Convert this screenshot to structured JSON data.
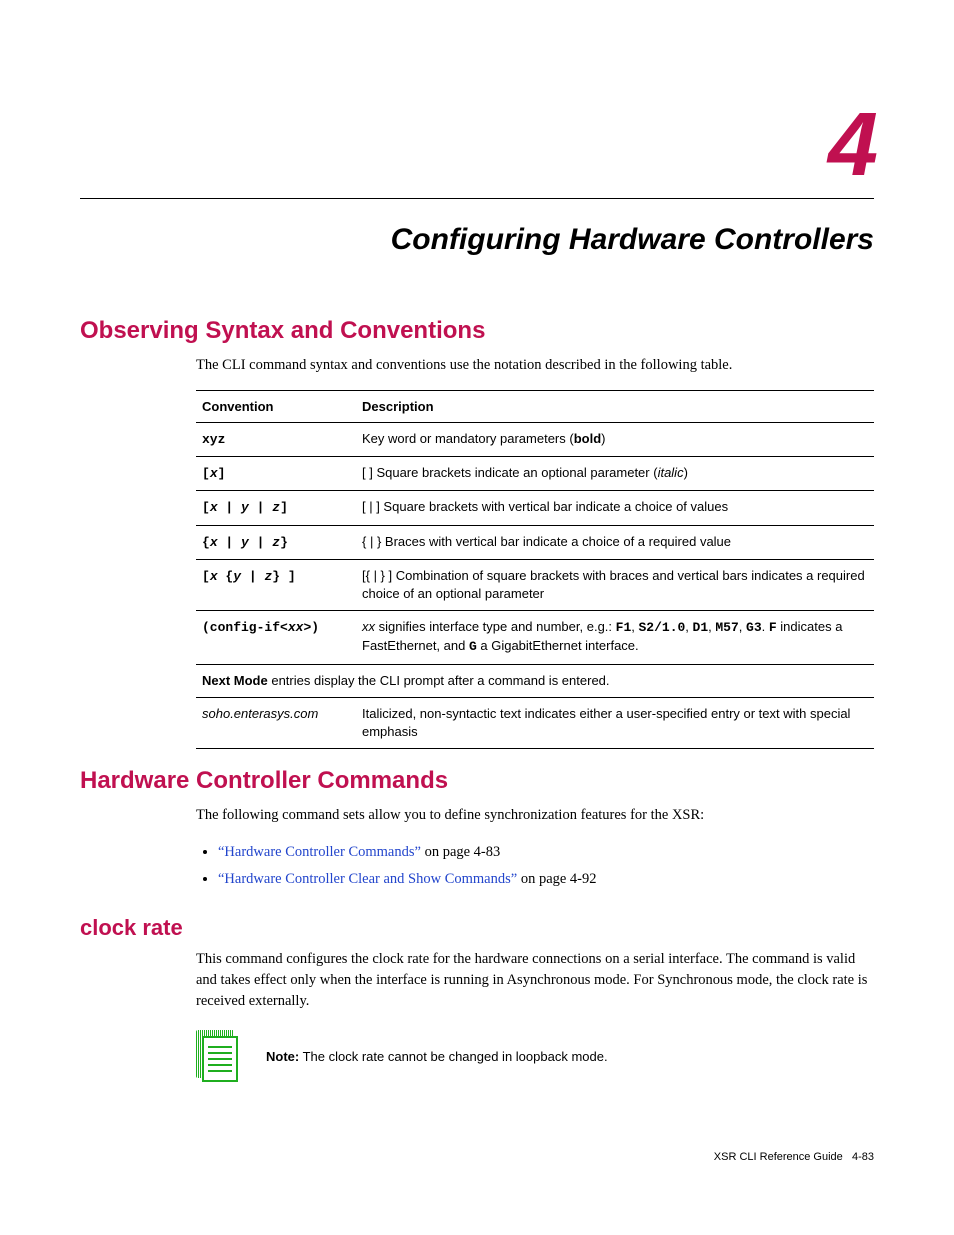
{
  "chapter": {
    "number": "4",
    "title": "Configuring Hardware Controllers"
  },
  "section_syntax": {
    "heading": "Observing Syntax and Conventions",
    "intro": "The CLI command syntax and conventions use the notation described in the following table.",
    "table": {
      "headers": [
        "Convention",
        "Description"
      ],
      "rows": [
        {
          "conv_html": "<span class='mono'>xyz</span>",
          "desc_html": "Key word or mandatory parameters (<span class='bold'>bold</span>)"
        },
        {
          "conv_html": "<span class='mono'>[</span><span class='mono-i'>x</span><span class='mono'>]</span>",
          "desc_html": "[ ] Square brackets indicate an optional parameter (<span class='italic'>italic</span>)"
        },
        {
          "conv_html": "<span class='mono'>[</span><span class='mono-i'>x</span><span class='mono'> | </span><span class='mono-i'>y</span><span class='mono'> | </span><span class='mono-i'>z</span><span class='mono'>]</span>",
          "desc_html": "[ | ] Square brackets with vertical bar indicate a choice of values"
        },
        {
          "conv_html": "<span class='mono'>{</span><span class='mono-i'>x</span><span class='mono'> | </span><span class='mono-i'>y</span><span class='mono'> | </span><span class='mono-i'>z</span><span class='mono'>}</span>",
          "desc_html": "{ | } Braces with vertical bar indicate a choice of a required value"
        },
        {
          "conv_html": "<span class='mono'>[</span><span class='mono-i'>x</span><span class='mono'> {</span><span class='mono-i'>y</span><span class='mono'> | </span><span class='mono-i'>z</span><span class='mono'>} ]</span>",
          "desc_html": "[{ | } ] Combination of square brackets with braces and vertical bars indicates a required choice of an optional parameter"
        },
        {
          "conv_html": "<span class='mono'>(config-if&lt;</span><span class='mono-i'>xx</span><span class='mono'>&gt;)</span>",
          "desc_html": "<span class='italic'>xx</span> signifies interface type and number, e.g.: <span class='mono'>F1</span>, <span class='mono'>S2/1.0</span>, <span class='mono'>D1</span>, <span class='mono'>M57</span>, <span class='mono'>G3</span>. <span class='mono'>F</span> indicates a FastEthernet, and <span class='mono'>G</span> a GigabitEthernet interface."
        },
        {
          "full_html": "<span class='bold'>Next Mode</span> entries display the CLI prompt after a command is entered."
        },
        {
          "conv_html": "<span class='italic'>soho.enterasys.com</span>",
          "desc_html": "Italicized, non-syntactic text indicates either a user-specified entry or text with special emphasis"
        }
      ]
    }
  },
  "section_commands": {
    "heading": "Hardware Controller Commands",
    "intro": "The following command sets allow you to define synchronization features for the XSR:",
    "bullets": [
      {
        "link": "“Hardware Controller Commands”",
        "rest": " on page 4-83"
      },
      {
        "link": "“Hardware Controller Clear and Show Commands”",
        "rest": " on page 4-92"
      }
    ]
  },
  "section_clock": {
    "heading": "clock rate",
    "body": "This command configures the clock rate for the hardware connections on a serial interface. The command is valid and takes effect only when the interface is running in Asynchronous mode. For Synchronous mode, the clock rate is received externally.",
    "note_label": "Note:",
    "note_text": " The clock rate cannot be changed in loopback mode."
  },
  "footer": {
    "doc": "XSR CLI Reference Guide",
    "page": "4-83"
  },
  "colors": {
    "brand": "#c01050",
    "link": "#2245cc",
    "note_icon": "#1fae1f"
  }
}
